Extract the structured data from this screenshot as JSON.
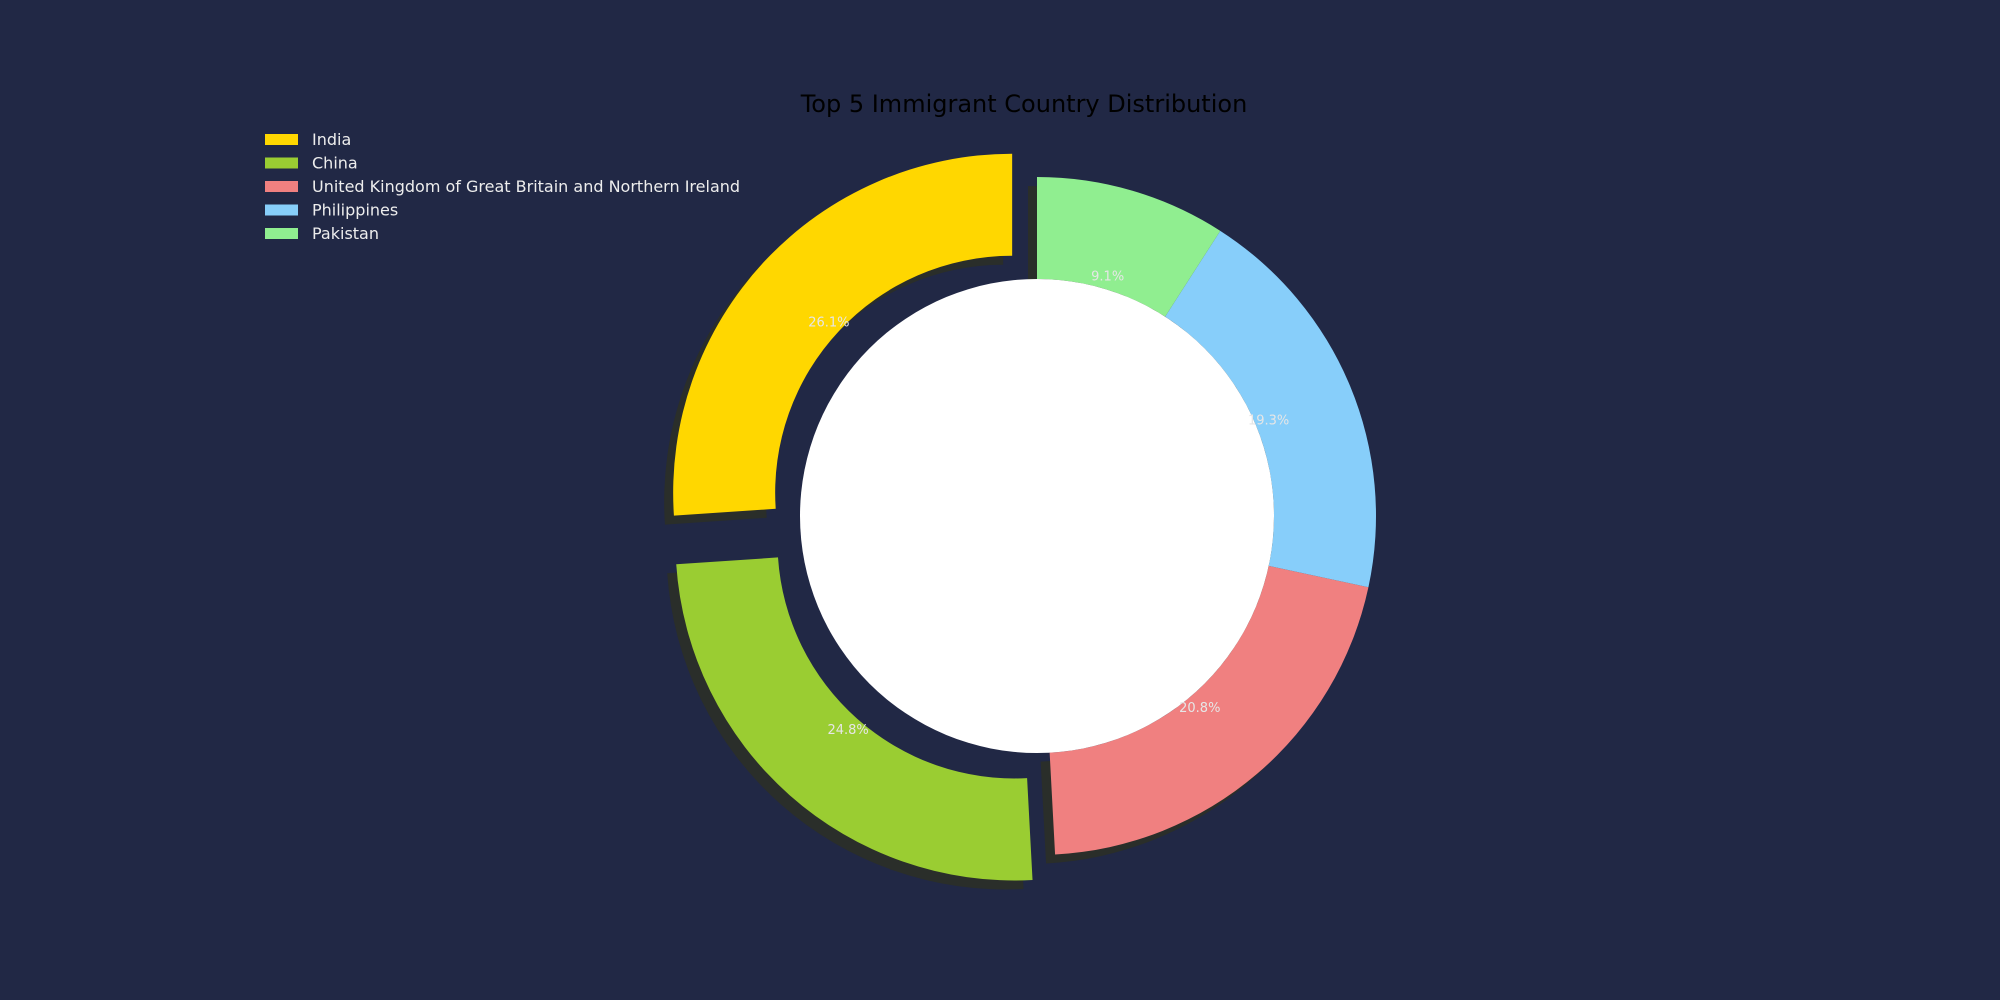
{
  "chart_data": {
    "type": "pie",
    "variant": "donut",
    "title": "Top 5 Immigrant Country Distribution",
    "legend_position": "top-left",
    "start_angle_deg": 90,
    "direction": "counterclockwise",
    "explode": [
      0.1,
      0.1,
      0,
      0,
      0
    ],
    "slices": [
      {
        "label": "India",
        "value": 26.1,
        "value_label": "26.1%",
        "color": "#FFD700"
      },
      {
        "label": "China",
        "value": 24.8,
        "value_label": "24.8%",
        "color": "#9ACD32"
      },
      {
        "label": "United Kingdom of Great Britain and Northern Ireland",
        "value": 20.8,
        "value_label": "20.8%",
        "color": "#F08080"
      },
      {
        "label": "Philippines",
        "value": 19.3,
        "value_label": "19.3%",
        "color": "#87CEFA"
      },
      {
        "label": "Pakistan",
        "value": 9.1,
        "value_label": "9.1%",
        "color": "#90EE90"
      }
    ],
    "colors": {
      "background": "#212845",
      "hole": "#FFFFFF",
      "title": "#000000",
      "legend_text": "#EDEDED",
      "pct_label": "#E6E6E6",
      "shadow": "#2A2E2A"
    }
  }
}
